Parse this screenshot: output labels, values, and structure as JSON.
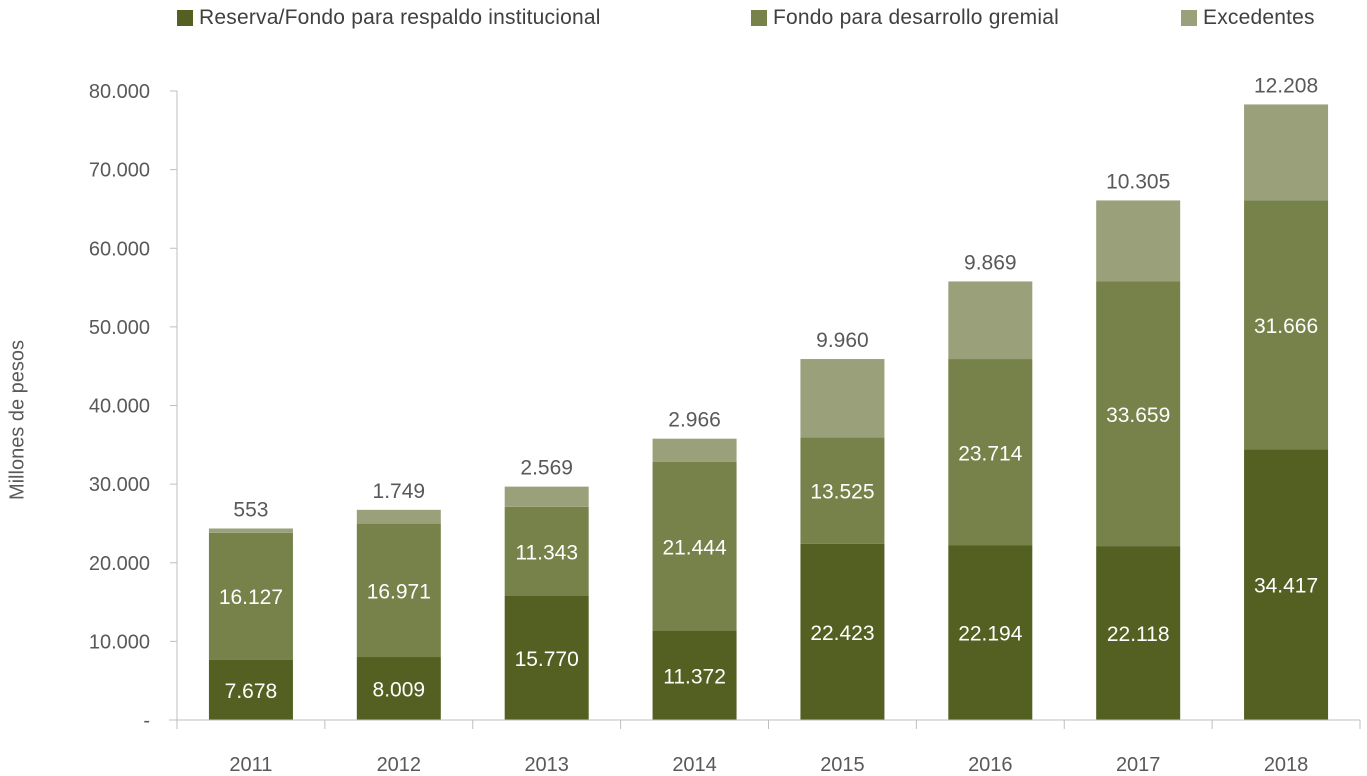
{
  "chart_data": {
    "type": "bar",
    "stacked": true,
    "categories": [
      "2011",
      "2012",
      "2013",
      "2014",
      "2015",
      "2016",
      "2017",
      "2018"
    ],
    "series": [
      {
        "name": "Reserva/Fondo para respaldo institucional",
        "color": "#536022",
        "values": [
          7678,
          8009,
          15770,
          11372,
          22423,
          22194,
          22118,
          34417
        ],
        "labels": [
          "7.678",
          "8.009",
          "15.770",
          "11.372",
          "22.423",
          "22.194",
          "22.118",
          "34.417"
        ]
      },
      {
        "name": "Fondo para desarrollo gremial",
        "color": "#76824a",
        "values": [
          16127,
          16971,
          11343,
          21444,
          13525,
          23714,
          33659,
          31666
        ],
        "labels": [
          "16.127",
          "16.971",
          "11.343",
          "21.444",
          "13.525",
          "23.714",
          "33.659",
          "31.666"
        ]
      },
      {
        "name": "Excedentes",
        "color": "#9aa17a",
        "values": [
          553,
          1749,
          2569,
          2966,
          9960,
          9869,
          10305,
          12208
        ],
        "labels": [
          "553",
          "1.749",
          "2.569",
          "2.966",
          "9.960",
          "9.869",
          "10.305",
          "12.208"
        ]
      }
    ],
    "ylabel": "Millones de pesos",
    "ylim": [
      0,
      80000
    ],
    "yticks": [
      0,
      10000,
      20000,
      30000,
      40000,
      50000,
      60000,
      70000,
      80000
    ],
    "ytick_labels": [
      "-",
      "10.000",
      "20.000",
      "30.000",
      "40.000",
      "50.000",
      "60.000",
      "70.000",
      "80.000"
    ],
    "legend_position": "top",
    "grid": false
  }
}
